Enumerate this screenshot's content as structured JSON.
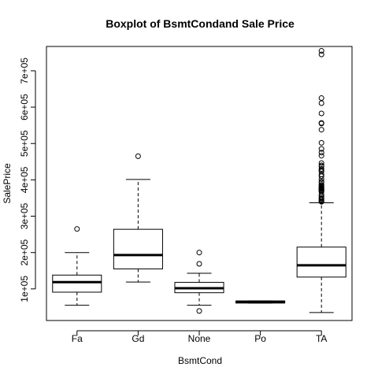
{
  "chart_data": {
    "type": "boxplot",
    "title": "Boxplot of BsmtCondand Sale Price",
    "xlabel": "BsmtCond",
    "ylabel": "SalePrice",
    "categories": [
      "Fa",
      "Gd",
      "None",
      "Po",
      "TA"
    ],
    "y_ticks": [
      100000,
      200000,
      300000,
      400000,
      500000,
      600000,
      700000
    ],
    "y_tick_labels": [
      "1e+05",
      "2e+05",
      "3e+05",
      "4e+05",
      "5e+05",
      "6e+05",
      "7e+05"
    ],
    "ylim": [
      13000,
      767000
    ],
    "grid": false,
    "boxes": [
      {
        "category": "Fa",
        "whisker_low": 55000,
        "q1": 91000,
        "median": 118500,
        "q3": 138000,
        "whisker_high": 200000,
        "outliers": [
          265000
        ]
      },
      {
        "category": "Gd",
        "whisker_low": 119000,
        "q1": 155000,
        "median": 193000,
        "q3": 264000,
        "whisker_high": 401000,
        "outliers": [
          465000
        ]
      },
      {
        "category": "None",
        "whisker_low": 55000,
        "q1": 89500,
        "median": 101800,
        "q3": 118000,
        "whisker_high": 143000,
        "outliers": [
          200000,
          169000,
          39300
        ]
      },
      {
        "category": "Po",
        "whisker_low": 61000,
        "q1": 61000,
        "median": 64000,
        "q3": 67000,
        "whisker_high": 67000,
        "outliers": []
      },
      {
        "category": "TA",
        "whisker_low": 34900,
        "q1": 132500,
        "median": 165000,
        "q3": 215000,
        "whisker_high": 337000,
        "outliers": [
          755000,
          745000,
          625000,
          611000,
          582900,
          556600,
          555000,
          538000,
          501800,
          485000,
          475000,
          466500,
          446300,
          440000,
          437000,
          430000,
          426000,
          423000,
          415000,
          410000,
          402000,
          395000,
          392500,
          386250,
          385000,
          381000,
          378500,
          377500,
          377000,
          375000,
          372500,
          372400,
          370878,
          369900,
          367294,
          359100,
          354000,
          350000,
          348000,
          345000,
          341000,
          340000,
          339750
        ]
      }
    ]
  }
}
